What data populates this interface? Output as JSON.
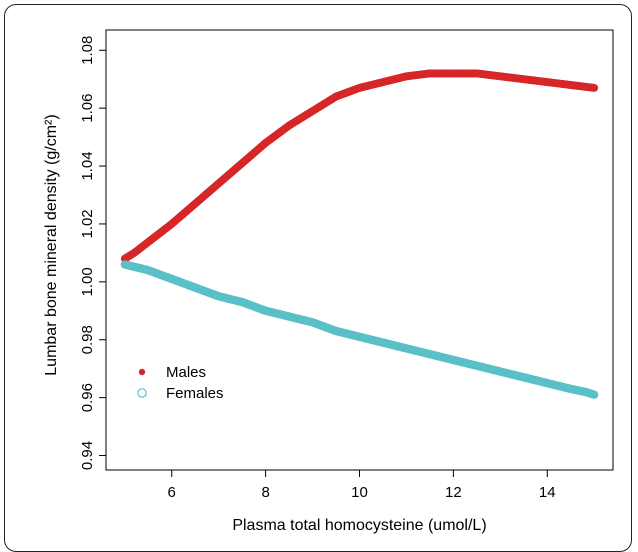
{
  "chart_data": {
    "type": "scatter",
    "title": "",
    "xlabel": "Plasma total homocysteine (umol/L)",
    "ylabel": "Lumbar bone mineral density (g/cm²)",
    "xlim": [
      4.6,
      15.4
    ],
    "ylim": [
      0.935,
      1.087
    ],
    "x_ticks": [
      6,
      8,
      10,
      12,
      14
    ],
    "y_ticks": [
      0.94,
      0.96,
      0.98,
      1.0,
      1.02,
      1.04,
      1.06,
      1.08
    ],
    "y_tick_labels": [
      "0.94",
      "0.96",
      "0.98",
      "1.00",
      "1.02",
      "1.04",
      "1.06",
      "1.08"
    ],
    "grid": false,
    "legend_position": "center-left",
    "series": [
      {
        "name": "Males",
        "marker": "filled-circle",
        "color": "#d62728",
        "x": [
          5.0,
          5.2,
          5.6,
          6.0,
          6.5,
          7.0,
          7.5,
          8.0,
          8.5,
          9.0,
          9.5,
          10.0,
          10.5,
          11.0,
          11.5,
          12.0,
          12.5,
          13.0,
          13.5,
          14.0,
          14.5,
          15.0
        ],
        "y": [
          1.008,
          1.01,
          1.015,
          1.02,
          1.027,
          1.034,
          1.041,
          1.048,
          1.054,
          1.059,
          1.064,
          1.067,
          1.069,
          1.071,
          1.072,
          1.072,
          1.072,
          1.071,
          1.07,
          1.069,
          1.068,
          1.067
        ]
      },
      {
        "name": "Females",
        "marker": "open-circle",
        "color": "#5bc0c8",
        "x": [
          5.0,
          5.5,
          6.0,
          6.5,
          7.0,
          7.5,
          8.0,
          8.5,
          9.0,
          9.5,
          10.0,
          10.5,
          11.0,
          11.5,
          12.0,
          12.5,
          13.0,
          13.5,
          14.0,
          14.5,
          14.8,
          15.0
        ],
        "y": [
          1.006,
          1.004,
          1.001,
          0.998,
          0.995,
          0.993,
          0.99,
          0.988,
          0.986,
          0.983,
          0.981,
          0.979,
          0.977,
          0.975,
          0.973,
          0.971,
          0.969,
          0.967,
          0.965,
          0.963,
          0.962,
          0.961
        ]
      }
    ]
  }
}
